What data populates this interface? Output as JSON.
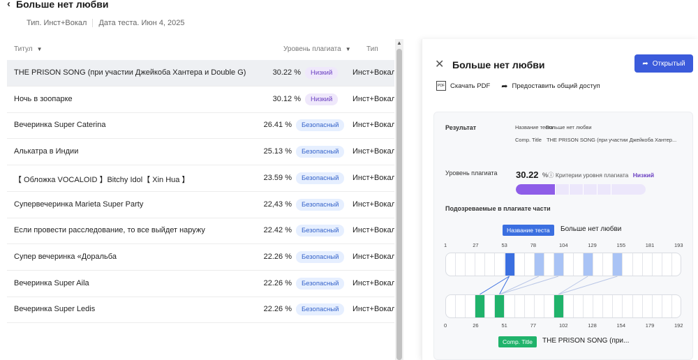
{
  "header": {
    "title": "Больше нет любви",
    "meta_type": "Тип. Инст+Вокал",
    "meta_date": "Дата теста. Июн 4, 2025"
  },
  "table": {
    "columns": {
      "title": "Титул",
      "level": "Уровень плагиата",
      "type": "Тип"
    },
    "rows": [
      {
        "title": "THE PRISON SONG (при участии Джейкоба Хантера и Double G)",
        "pct": "30.22 %",
        "badge": "Низкий",
        "badge_kind": "low",
        "type": "Инст+Вокал",
        "selected": true
      },
      {
        "title": "Ночь в зоопарке",
        "pct": "30.12 %",
        "badge": "Низкий",
        "badge_kind": "low",
        "type": "Инст+Вокал"
      },
      {
        "title": "Вечеринка Super Caterina",
        "pct": "26.41 %",
        "badge": "Безопасный",
        "badge_kind": "safe",
        "type": "Инст+Вокал"
      },
      {
        "title": "Алькатра в Индии",
        "pct": "25.13 %",
        "badge": "Безопасный",
        "badge_kind": "safe",
        "type": "Инст+Вокал"
      },
      {
        "title": "【 Обложка VOCALOID 】Bitchy Idol【 Xin Hua 】",
        "pct": "23.59 %",
        "badge": "Безопасный",
        "badge_kind": "safe",
        "type": "Инст+Вокал"
      },
      {
        "title": "Супервечеринка Marieta Super Party",
        "pct": "22,43 %",
        "badge": "Безопасный",
        "badge_kind": "safe",
        "type": "Инст+Вокал"
      },
      {
        "title": "Если провести расследование, то все выйдет наружу",
        "pct": "22.42 %",
        "badge": "Безопасный",
        "badge_kind": "safe",
        "type": "Инст+Вокал"
      },
      {
        "title": "Супер вечеринка «Доральба",
        "pct": "22.26 %",
        "badge": "Безопасный",
        "badge_kind": "safe",
        "type": "Инст+Вокал"
      },
      {
        "title": "Вечеринка Super Aila",
        "pct": "22.26 %",
        "badge": "Безопасный",
        "badge_kind": "safe",
        "type": "Инст+Вокал"
      },
      {
        "title": "Вечеринка Super Ledis",
        "pct": "22.26 %",
        "badge": "Безопасный",
        "badge_kind": "safe",
        "type": "Инст+Вокал"
      }
    ]
  },
  "panel": {
    "title": "Больше нет любви",
    "open_button": "Открытый",
    "download_pdf": "Скачать PDF",
    "share": "Предоставить общий доступ",
    "result_label": "Результат",
    "test_name_label": "Название теста",
    "test_name_value": "Больше нет любви",
    "comp_title_label": "Comp. Title",
    "comp_title_value": "THE PRISON SONG (при участии Джейкоба Хантер...",
    "plag_level_label": "Уровень плагиата",
    "plag_value": "30.22",
    "plag_unit": "%",
    "criteria_label": "Критерии уровня плагиата",
    "criteria_value": "Низкий",
    "plag_fraction": 0.3022,
    "suspect_label": "Подозреваемые в плагиате части",
    "tag_test": "Название теста",
    "tag_test_text": "Больше нет любви",
    "tag_comp": "Comp. Title",
    "tag_comp_text": "THE PRISON SONG (при...",
    "top_axis": [
      "1",
      "27",
      "53",
      "78",
      "104",
      "129",
      "155",
      "181",
      "193"
    ],
    "bottom_axis": [
      "0",
      "26",
      "51",
      "77",
      "102",
      "128",
      "154",
      "179",
      "192"
    ],
    "accent": "#3b5bdb",
    "low_color": "#6a3fc1",
    "match_color": "#20b36b"
  }
}
